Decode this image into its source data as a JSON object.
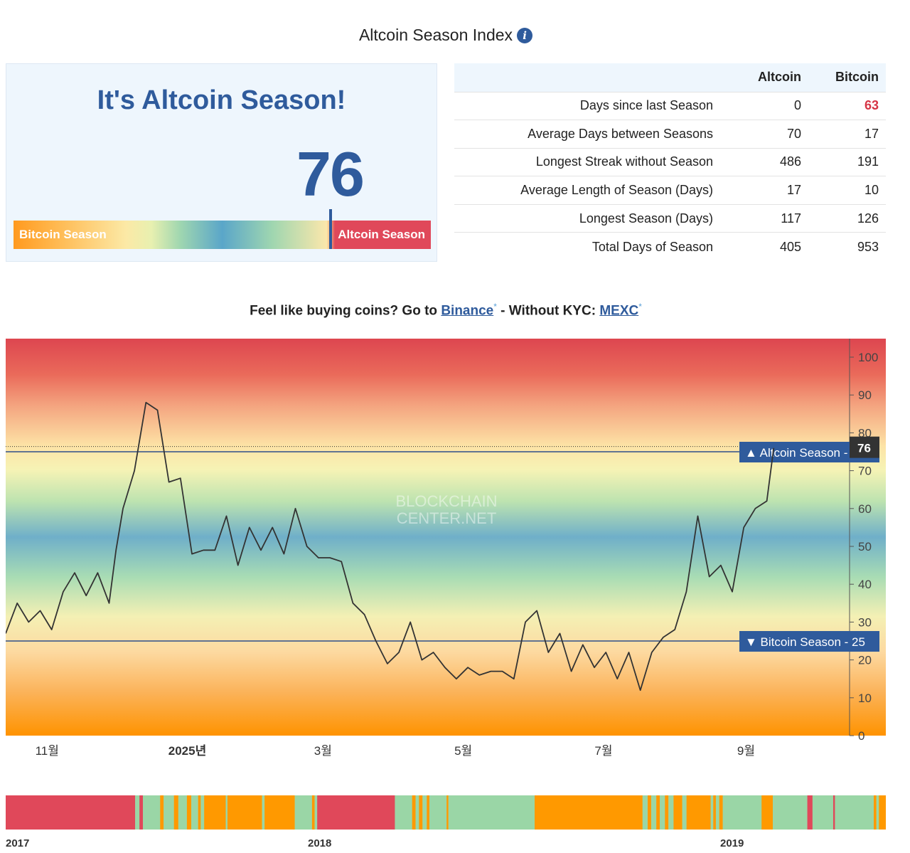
{
  "header": {
    "title": "Altcoin Season Index",
    "info_icon": "info-icon"
  },
  "season_panel": {
    "headline": "It's Altcoin Season!",
    "value": "76",
    "value_fraction": 0.76,
    "left_label": "Bitcoin Season",
    "right_label": "Altcoin Season"
  },
  "stats": {
    "columns": [
      "",
      "Altcoin",
      "Bitcoin"
    ],
    "rows": [
      {
        "label": "Days since last Season",
        "altcoin": "0",
        "bitcoin": "63",
        "bitcoin_highlight": true
      },
      {
        "label": "Average Days between Seasons",
        "altcoin": "70",
        "bitcoin": "17"
      },
      {
        "label": "Longest Streak without Season",
        "altcoin": "486",
        "bitcoin": "191"
      },
      {
        "label": "Average Length of Season (Days)",
        "altcoin": "17",
        "bitcoin": "10"
      },
      {
        "label": "Longest Season (Days)",
        "altcoin": "117",
        "bitcoin": "126"
      },
      {
        "label": "Total Days of Season",
        "altcoin": "405",
        "bitcoin": "953"
      }
    ]
  },
  "promo": {
    "prefix": "Feel like buying coins? Go to ",
    "link1": "Binance",
    "middle": " - Without KYC: ",
    "link2": "MEXC",
    "star": "*"
  },
  "colors": {
    "accent": "#2f5b9c",
    "altcoin_red": "#e0485a",
    "bitcoin_orange": "#ff9900",
    "neutral_green": "#9ad6a6",
    "line": "#333333"
  },
  "chart_data": [
    {
      "type": "line",
      "watermark": "BLOCKCHAIN CENTER.NET",
      "ylim": [
        0,
        100
      ],
      "y_ticks": [
        0,
        10,
        20,
        30,
        40,
        50,
        60,
        70,
        80,
        90,
        100
      ],
      "x_range": [
        "2024-10-14",
        "2025-10-16"
      ],
      "x_ticks": [
        {
          "date": "2024-11-01",
          "label": "11월",
          "bold": false
        },
        {
          "date": "2025-01-01",
          "label": "2025년",
          "bold": true
        },
        {
          "date": "2025-03-01",
          "label": "3월",
          "bold": false
        },
        {
          "date": "2025-05-01",
          "label": "5월",
          "bold": false
        },
        {
          "date": "2025-07-01",
          "label": "7월",
          "bold": false
        },
        {
          "date": "2025-09-01",
          "label": "9월",
          "bold": false
        }
      ],
      "current_value": 76,
      "thresholds": [
        {
          "label": "▲ Altcoin Season",
          "value": 75
        },
        {
          "label": "▼ Bitcoin Season",
          "value": 25
        }
      ],
      "series": [
        {
          "x": [
            "2024-10-14",
            "2024-10-19",
            "2024-10-24",
            "2024-10-29",
            "2024-11-03",
            "2024-11-08",
            "2024-11-13",
            "2024-11-18",
            "2024-11-23",
            "2024-11-28",
            "2024-12-01",
            "2024-12-04",
            "2024-12-09",
            "2024-12-14",
            "2024-12-19",
            "2024-12-24",
            "2024-12-29",
            "2025-01-03",
            "2025-01-08",
            "2025-01-13",
            "2025-01-18",
            "2025-01-23",
            "2025-01-28",
            "2025-02-02",
            "2025-02-07",
            "2025-02-12",
            "2025-02-17",
            "2025-02-22",
            "2025-02-27",
            "2025-03-04",
            "2025-03-09",
            "2025-03-14",
            "2025-03-19",
            "2025-03-24",
            "2025-03-29",
            "2025-04-03",
            "2025-04-08",
            "2025-04-13",
            "2025-04-18",
            "2025-04-23",
            "2025-04-28",
            "2025-05-03",
            "2025-05-08",
            "2025-05-13",
            "2025-05-18",
            "2025-05-23",
            "2025-05-28",
            "2025-06-02",
            "2025-06-07",
            "2025-06-12",
            "2025-06-17",
            "2025-06-22",
            "2025-06-27",
            "2025-07-02",
            "2025-07-07",
            "2025-07-12",
            "2025-07-17",
            "2025-07-22",
            "2025-07-27",
            "2025-08-01",
            "2025-08-06",
            "2025-08-11",
            "2025-08-16",
            "2025-08-21",
            "2025-08-26",
            "2025-08-31",
            "2025-09-05",
            "2025-09-10",
            "2025-09-13"
          ],
          "values": [
            27,
            35,
            30,
            33,
            28,
            38,
            43,
            37,
            43,
            35,
            49,
            60,
            70,
            88,
            86,
            67,
            68,
            48,
            49,
            49,
            58,
            45,
            55,
            49,
            55,
            48,
            60,
            50,
            47,
            47,
            46,
            35,
            32,
            25,
            19,
            22,
            30,
            20,
            22,
            18,
            15,
            18,
            16,
            17,
            17,
            15,
            30,
            33,
            22,
            27,
            17,
            24,
            18,
            22,
            15,
            22,
            12,
            22,
            26,
            28,
            38,
            58,
            42,
            45,
            38,
            55,
            60,
            62,
            76
          ]
        }
      ]
    },
    {
      "type": "heatmap",
      "x_labels": [
        "2017",
        "2018",
        "2019"
      ],
      "color_key": {
        "A": "#e0485a",
        "B": "#ff9900",
        "N": "#9ad6a6"
      },
      "segments": [
        [
          "A",
          15
        ],
        [
          "N",
          0.5
        ],
        [
          "A",
          0.4
        ],
        [
          "N",
          2
        ],
        [
          "B",
          0.4
        ],
        [
          "N",
          1.2
        ],
        [
          "B",
          0.5
        ],
        [
          "N",
          1
        ],
        [
          "B",
          0.5
        ],
        [
          "N",
          0.8
        ],
        [
          "B",
          0.3
        ],
        [
          "N",
          0.4
        ],
        [
          "B",
          2.5
        ],
        [
          "N",
          0.2
        ],
        [
          "B",
          4
        ],
        [
          "N",
          0.3
        ],
        [
          "B",
          3.5
        ],
        [
          "N",
          2
        ],
        [
          "B",
          0.3
        ],
        [
          "N",
          0.3
        ],
        [
          "A",
          9
        ],
        [
          "N",
          2
        ],
        [
          "B",
          0.4
        ],
        [
          "N",
          0.4
        ],
        [
          "B",
          0.4
        ],
        [
          "N",
          0.5
        ],
        [
          "B",
          0.3
        ],
        [
          "N",
          2
        ],
        [
          "B",
          0.2
        ],
        [
          "N",
          10
        ],
        [
          "B",
          12.5
        ],
        [
          "N",
          0.6
        ],
        [
          "B",
          0.4
        ],
        [
          "N",
          0.6
        ],
        [
          "B",
          0.4
        ],
        [
          "N",
          0.6
        ],
        [
          "B",
          0.4
        ],
        [
          "N",
          0.6
        ],
        [
          "B",
          1
        ],
        [
          "N",
          0.5
        ],
        [
          "B",
          2.8
        ],
        [
          "N",
          0.3
        ],
        [
          "B",
          0.3
        ],
        [
          "N",
          0.4
        ],
        [
          "B",
          0.4
        ],
        [
          "N",
          4.5
        ],
        [
          "B",
          1.3
        ],
        [
          "N",
          4
        ],
        [
          "A",
          0.6
        ],
        [
          "N",
          2.4
        ],
        [
          "A",
          0.2
        ],
        [
          "N",
          4.5
        ],
        [
          "B",
          0.3
        ],
        [
          "N",
          0.3
        ],
        [
          "B",
          0.8
        ]
      ]
    }
  ]
}
